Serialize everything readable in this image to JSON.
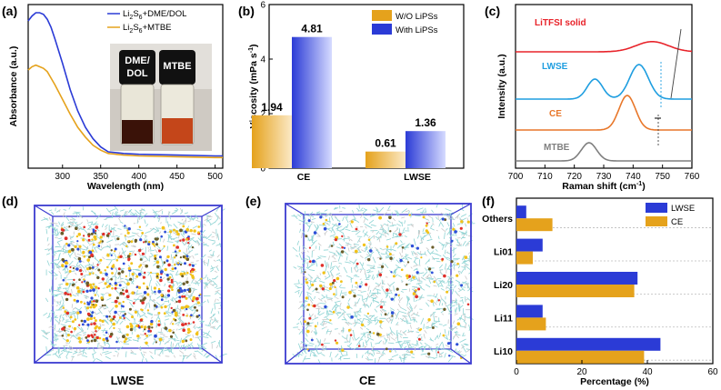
{
  "panels": {
    "a": {
      "label": "(a)"
    },
    "b": {
      "label": "(b)"
    },
    "c": {
      "label": "(c)"
    },
    "d": {
      "label": "(d)",
      "caption": "LWSE"
    },
    "e": {
      "label": "(e)",
      "caption": "CE"
    },
    "f": {
      "label": "(f)"
    }
  },
  "photo": {
    "vial_left": "DME/\nDOL",
    "vial_left_line1": "DME/",
    "vial_left_line2": "DOL",
    "vial_right": "MTBE"
  },
  "chart_data": [
    {
      "id": "a",
      "type": "line",
      "xlabel": "Wavelength (nm)",
      "ylabel": "Absorbance (a.u.)",
      "xlim": [
        255,
        510
      ],
      "xticks": [
        300,
        350,
        400,
        450,
        500
      ],
      "legend_pos": "top-right",
      "series": [
        {
          "name": "Li2S6+DME/DOL",
          "name_main": "Li",
          "name_sub": "2",
          "name_mid": "S",
          "name_sub2": "6",
          "name_tail": "+DME/DOL",
          "color": "#2b3bd6",
          "x": [
            255,
            260,
            265,
            270,
            275,
            280,
            285,
            290,
            300,
            310,
            320,
            330,
            340,
            350,
            360,
            380,
            400,
            450,
            500,
            510
          ],
          "y": [
            0.9,
            0.93,
            0.95,
            0.95,
            0.94,
            0.91,
            0.86,
            0.79,
            0.64,
            0.48,
            0.35,
            0.25,
            0.18,
            0.13,
            0.1,
            0.09,
            0.085,
            0.08,
            0.075,
            0.075
          ]
        },
        {
          "name": "Li2S6+MTBE",
          "name_main": "Li",
          "name_sub": "2",
          "name_mid": "S",
          "name_sub2": "6",
          "name_tail": "+MTBE",
          "color": "#e5a21c",
          "x": [
            255,
            260,
            265,
            270,
            275,
            280,
            285,
            290,
            300,
            310,
            320,
            330,
            340,
            350,
            360,
            380,
            400,
            450,
            500,
            510
          ],
          "y": [
            0.6,
            0.62,
            0.63,
            0.62,
            0.61,
            0.59,
            0.55,
            0.51,
            0.42,
            0.33,
            0.25,
            0.19,
            0.14,
            0.11,
            0.09,
            0.08,
            0.075,
            0.07,
            0.065,
            0.065
          ]
        }
      ]
    },
    {
      "id": "b",
      "type": "bar",
      "ylabel": "Viscosity (mPa s",
      "ylabel_sup": "-1",
      "ylabel_end": ")",
      "categories": [
        "CE",
        "LWSE"
      ],
      "ylim": [
        0,
        6
      ],
      "yticks": [
        0,
        2,
        4,
        6
      ],
      "legend_pos": "top-right",
      "series": [
        {
          "name": "W/O LiPSs",
          "color": "#e5a21c",
          "values": [
            1.94,
            0.61
          ],
          "labels": [
            "1.94",
            "0.61"
          ]
        },
        {
          "name": "With LiPSs",
          "color": "#2b3bd6",
          "values": [
            4.81,
            1.36
          ],
          "labels": [
            "4.81",
            "1.36"
          ]
        }
      ]
    },
    {
      "id": "c",
      "type": "line",
      "xlabel": "Raman shift (cm",
      "xlabel_sup": "-1",
      "xlabel_end": ")",
      "ylabel": "Intensity (a.u.)",
      "xlim": [
        700,
        760
      ],
      "xticks": [
        700,
        710,
        720,
        730,
        740,
        750,
        760
      ],
      "series": [
        {
          "name": "LiTFSI  solid",
          "color": "#e8232a",
          "offset": 3.0,
          "peaks": [
            [
              746.5,
              0.28,
              5.5
            ]
          ]
        },
        {
          "name": "LWSE",
          "color": "#1f9ee0",
          "offset": 1.7,
          "peaks": [
            [
              727,
              0.55,
              2.6
            ],
            [
              742,
              0.95,
              3.2
            ]
          ]
        },
        {
          "name": "CE",
          "color": "#e8772a",
          "offset": 0.85,
          "peaks": [
            [
              738,
              0.95,
              2.8
            ]
          ]
        },
        {
          "name": "MTBE",
          "color": "#7f7f7f",
          "offset": 0.0,
          "peaks": [
            [
              725,
              0.5,
              2.6
            ]
          ]
        }
      ]
    },
    {
      "id": "f",
      "type": "bar",
      "orientation": "horizontal",
      "xlabel": "Percentage (%)",
      "categories": [
        "Others",
        "Li01",
        "Li20",
        "Li11",
        "Li10"
      ],
      "xlim": [
        0,
        60
      ],
      "xticks": [
        0,
        20,
        40,
        60
      ],
      "legend_pos": "top-right",
      "series": [
        {
          "name": "LWSE",
          "color": "#2b3bd6",
          "values": [
            3,
            8,
            37,
            8,
            44
          ]
        },
        {
          "name": "CE",
          "color": "#e5a21c",
          "values": [
            11,
            5,
            36,
            9,
            39
          ]
        }
      ]
    }
  ],
  "colors": {
    "blue": "#2b3bd6",
    "orange": "#e5a21c",
    "dots": "#6fcfcf"
  }
}
